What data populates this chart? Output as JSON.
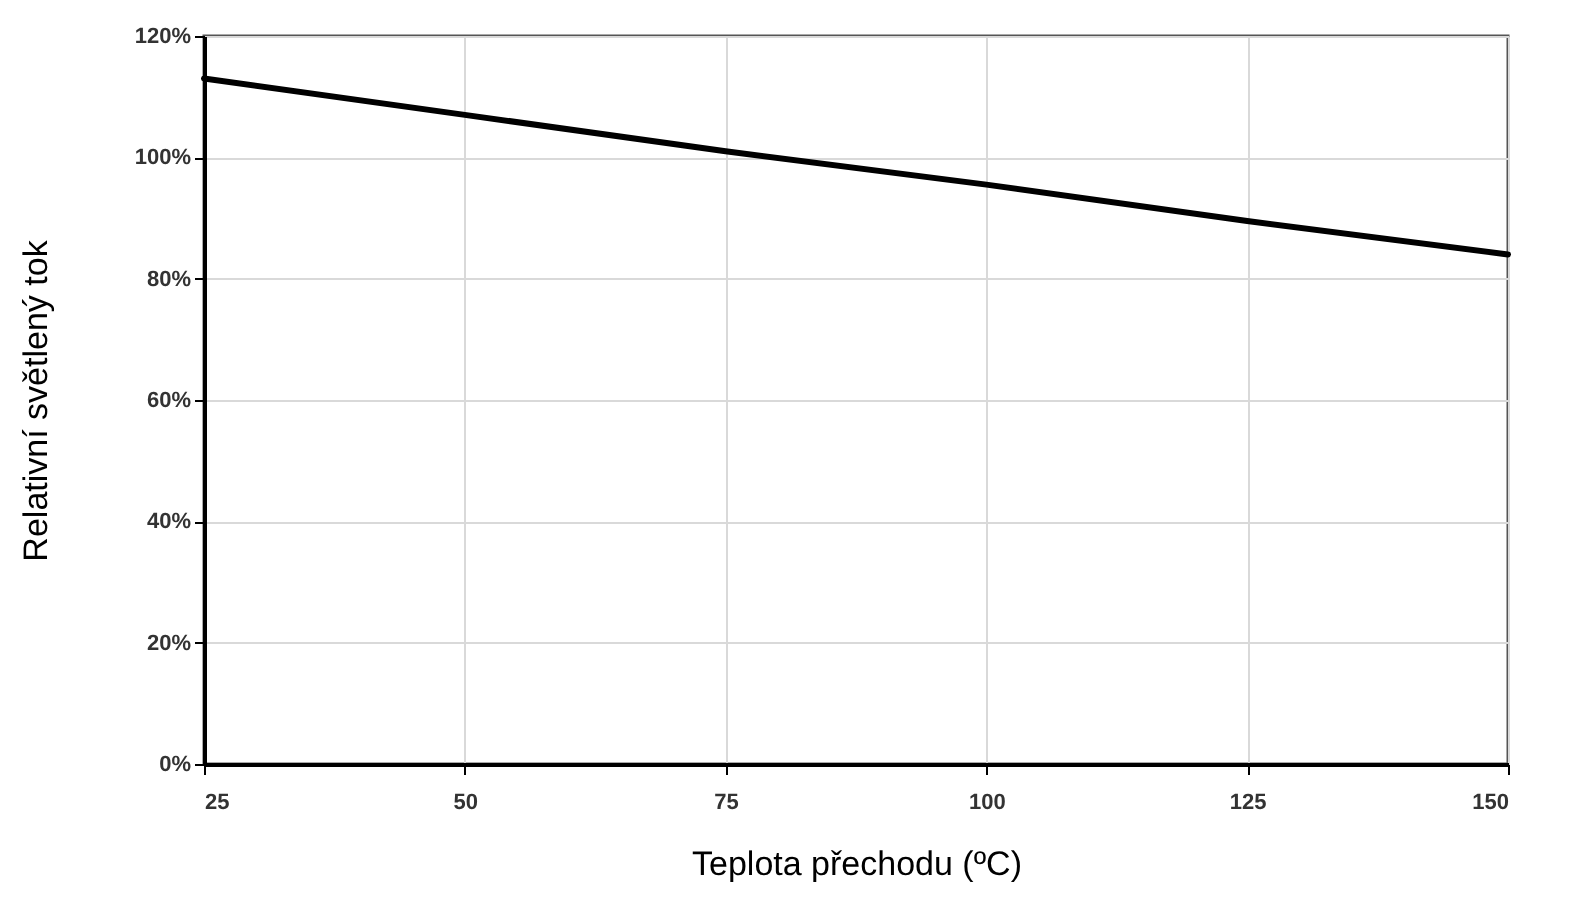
{
  "chart_data": {
    "type": "line",
    "xlabel": "Teplota přechodu (ºC)",
    "ylabel": "Relativní světlený tok",
    "x": [
      25,
      50,
      75,
      100,
      125,
      150
    ],
    "series": [
      {
        "color": "#000000",
        "values": [
          113,
          107,
          101,
          95.5,
          89.5,
          84
        ]
      }
    ],
    "xlim": [
      25,
      150
    ],
    "xticks": [
      25,
      50,
      75,
      100,
      125,
      150
    ],
    "ylim": [
      0,
      120
    ],
    "yticks": [
      {
        "value": 0,
        "label": "0%"
      },
      {
        "value": 20,
        "label": "20%"
      },
      {
        "value": 40,
        "label": "40%"
      },
      {
        "value": 60,
        "label": "60%"
      },
      {
        "value": 80,
        "label": "80%"
      },
      {
        "value": 100,
        "label": "100%"
      },
      {
        "value": 120,
        "label": "120%"
      }
    ],
    "grid": true,
    "marker": "none",
    "line_style": "solid"
  }
}
